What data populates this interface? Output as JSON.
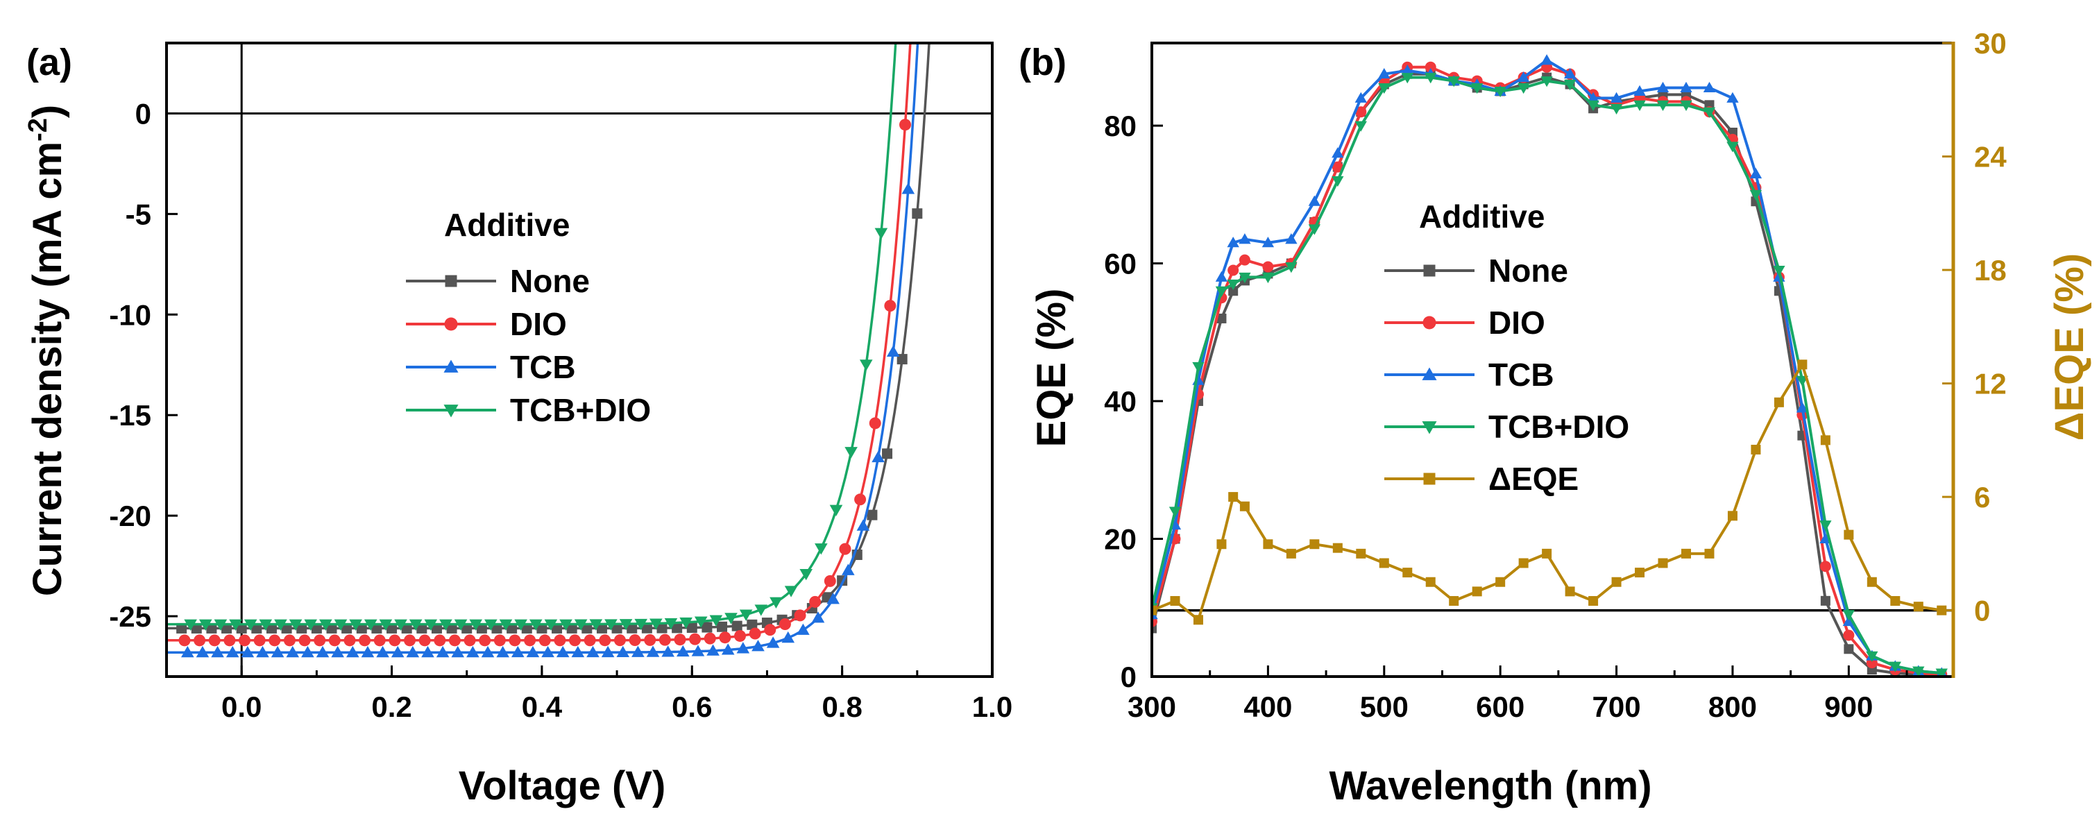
{
  "chart_data": [
    {
      "type": "line",
      "panel_label": "(a)",
      "xlabel": "Voltage (V)",
      "ylabel_main": "Current density (mA cm",
      "ylabel_sup": "-2",
      "ylabel_end": ")",
      "xlim": [
        -0.1,
        1.0
      ],
      "ylim": [
        -28,
        3.5
      ],
      "xticks": [
        0.0,
        0.2,
        0.4,
        0.6,
        0.8,
        1.0
      ],
      "xtick_labels": [
        "0.0",
        "0.2",
        "0.4",
        "0.6",
        "0.8",
        "1.0"
      ],
      "yticks": [
        0,
        -5,
        -10,
        -15,
        -20,
        -25
      ],
      "ytick_labels": [
        "0",
        "-5",
        "-10",
        "-15",
        "-20",
        "-25"
      ],
      "reference_lines": {
        "x": 0.0,
        "y": 0
      },
      "legend_title": "Additive",
      "legend_position": "center",
      "series": [
        {
          "name": "None",
          "color": "#555555",
          "marker": "square",
          "Jsc": -25.6,
          "n": 1.8,
          "Voc": 0.91
        },
        {
          "name": "DIO",
          "color": "#f0383b",
          "marker": "circle",
          "Jsc": -26.2,
          "n": 1.8,
          "Voc": 0.885
        },
        {
          "name": "TCB",
          "color": "#1e6fe0",
          "marker": "triangle-up",
          "Jsc": -26.8,
          "n": 1.8,
          "Voc": 0.895
        },
        {
          "name": "TCB+DIO",
          "color": "#18a865",
          "marker": "triangle-down",
          "Jsc": -25.4,
          "n": 1.9,
          "Voc": 0.865
        }
      ]
    },
    {
      "type": "line",
      "panel_label": "(b)",
      "xlabel": "Wavelength (nm)",
      "ylabel": "EQE (%)",
      "ylabel_right": "ΔEQE (%)",
      "xlim": [
        300,
        990
      ],
      "ylim": [
        0,
        92
      ],
      "ylim_right": [
        -3.5,
        30
      ],
      "xticks": [
        300,
        400,
        500,
        600,
        700,
        800,
        900
      ],
      "xtick_labels": [
        "300",
        "400",
        "500",
        "600",
        "700",
        "800",
        "900"
      ],
      "yticks": [
        0,
        20,
        40,
        60,
        80
      ],
      "ytick_labels": [
        "0",
        "20",
        "40",
        "60",
        "80"
      ],
      "yticks_right": [
        0,
        6,
        12,
        18,
        24,
        30
      ],
      "ytick_right_labels": [
        "0",
        "6",
        "12",
        "18",
        "24",
        "30"
      ],
      "right_axis_color": "#b8860b",
      "legend_title": "Additive",
      "legend_position": "center",
      "wavelength": [
        300,
        320,
        340,
        360,
        370,
        380,
        400,
        420,
        440,
        460,
        480,
        500,
        520,
        540,
        560,
        580,
        600,
        620,
        640,
        660,
        680,
        700,
        720,
        740,
        760,
        780,
        800,
        820,
        840,
        860,
        880,
        900,
        920,
        940,
        960,
        980
      ],
      "series": [
        {
          "name": "None",
          "color": "#555555",
          "marker": "square",
          "axis": "left",
          "values": [
            7,
            20,
            40,
            52,
            56,
            57.5,
            58.5,
            60,
            66,
            74,
            82,
            86,
            87.5,
            87.5,
            86.5,
            85.5,
            85,
            86,
            87,
            86,
            82.5,
            83.5,
            84,
            84.5,
            84.5,
            83,
            79,
            69,
            56,
            35,
            11,
            4,
            1,
            0.5,
            0.3,
            0.2
          ]
        },
        {
          "name": "DIO",
          "color": "#f0383b",
          "marker": "circle",
          "axis": "left",
          "values": [
            8,
            20,
            41,
            55,
            59,
            60.5,
            59.5,
            60,
            66,
            74,
            82,
            86.5,
            88.5,
            88.5,
            87,
            86.5,
            85.5,
            87,
            88.5,
            87.5,
            84.5,
            83,
            84,
            83.5,
            83.5,
            82,
            78,
            71,
            58,
            38,
            16,
            6,
            2,
            1,
            0.5,
            0.3
          ]
        },
        {
          "name": "TCB",
          "color": "#1e6fe0",
          "marker": "triangle-up",
          "axis": "left",
          "values": [
            9,
            22,
            43,
            58,
            63,
            63.5,
            63,
            63.5,
            69,
            76,
            84,
            87.5,
            88,
            87.5,
            86.5,
            86,
            85,
            87,
            89.5,
            87.5,
            84,
            84,
            85,
            85.5,
            85.5,
            85.5,
            84,
            73,
            58,
            39,
            20,
            8,
            3,
            1.5,
            0.8,
            0.5
          ]
        },
        {
          "name": "TCB+DIO",
          "color": "#18a865",
          "marker": "triangle-down",
          "axis": "left",
          "values": [
            10,
            24,
            45,
            56,
            57,
            58,
            58,
            59.5,
            65,
            72,
            80,
            85.5,
            87,
            87,
            86.5,
            85.5,
            85,
            85.5,
            86.5,
            86,
            83,
            82.5,
            83,
            83,
            83,
            82,
            77,
            70,
            59,
            43,
            22,
            9,
            3,
            1.5,
            0.8,
            0.5
          ]
        },
        {
          "name": "ΔEQE",
          "color": "#b8860b",
          "marker": "square",
          "axis": "right",
          "values": [
            0,
            0.5,
            -0.5,
            3.5,
            6,
            5.5,
            3.5,
            3,
            3.5,
            3.3,
            3,
            2.5,
            2,
            1.5,
            0.5,
            1,
            1.5,
            2.5,
            3,
            1,
            0.5,
            1.5,
            2,
            2.5,
            3,
            3,
            5,
            8.5,
            11,
            13,
            9,
            4,
            1.5,
            0.5,
            0.2,
            0
          ]
        }
      ]
    }
  ]
}
